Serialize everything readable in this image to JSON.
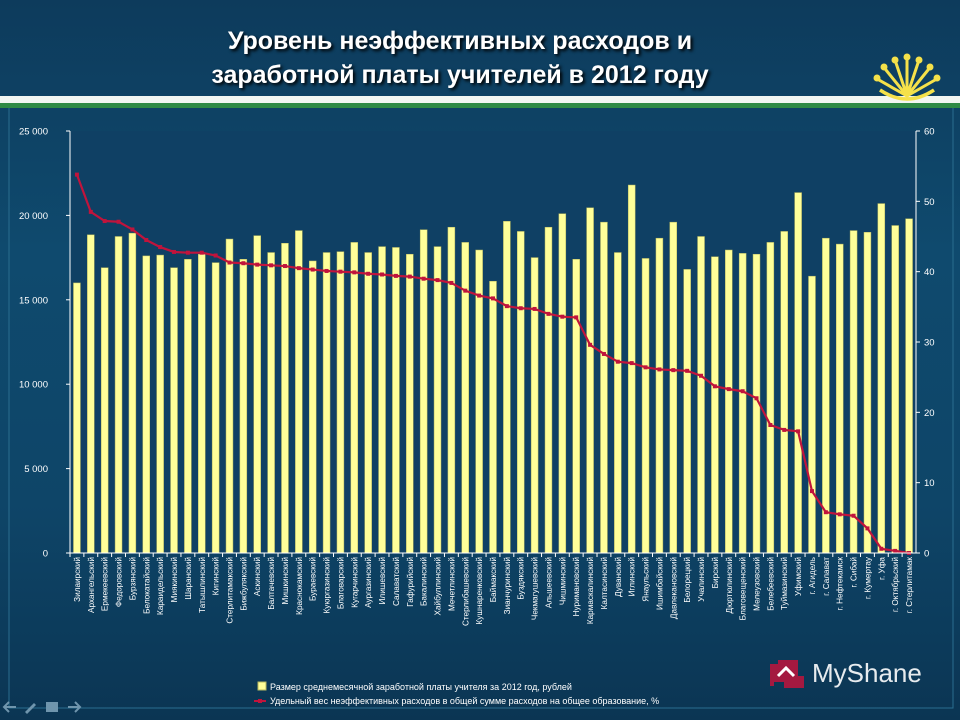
{
  "slide": {
    "title_line_1": "Уровень неэффективных расходов и",
    "title_line_2": "заработной платы учителей в 2012 году"
  },
  "watermark": {
    "text": "MyShane"
  },
  "colors": {
    "bar": "#ffff99",
    "bar_edge": "#b9b960",
    "line": "#c0143c",
    "plot_bg": "#0f4064",
    "axis": "#ffffff",
    "emblem": "#f5e14a"
  },
  "chart_data": {
    "type": "bar",
    "categories": [
      "Зилаирский",
      "Архангельский",
      "Ермекеевский",
      "Федоровский",
      "Бурзянский",
      "Белокатайский",
      "Караидельский",
      "Миякинский",
      "Шаранский",
      "Татышлинский",
      "Кигинский",
      "Стерлитамакский",
      "Бижбулякский",
      "Аскинский",
      "Балтачевский",
      "Мишкинский",
      "Краснокамский",
      "Бураевский",
      "Куюргазинский",
      "Благоварский",
      "Кугарчинский",
      "Аургазинский",
      "Илишевский",
      "Салаватский",
      "Гафурийский",
      "Бакалинский",
      "Хайбуллинский",
      "Мечетлинский",
      "Стерлибашевский",
      "Кушнаренковский",
      "Баймакский",
      "Зианчуринский",
      "Буздякский",
      "Чекмагушевский",
      "Альшеевский",
      "Чишминский",
      "Нуримановский",
      "Кармаскалинский",
      "Калтасинский",
      "Дуванский",
      "Иглинский",
      "Янаульский",
      "Ишимбайский",
      "Давлекановский",
      "Белорецкий",
      "Учалинский",
      "Бирский",
      "Дюртюлинский",
      "Благовещенский",
      "Мелеузовский",
      "Белебеевский",
      "Туймазинский",
      "Уфимский",
      "г. Агидель",
      "г. Салават",
      "г. Нефтекамск",
      "г. Сибай",
      "г. Кумертау",
      "г. Уфа",
      "г. Октябрьский",
      "г. Стерлитамак"
    ],
    "series": [
      {
        "name": "Размер среднемесячной заработной платы учителя  за 2012 год, рублей",
        "kind": "bar",
        "axis": "left",
        "values": [
          16000,
          18850,
          16900,
          18750,
          18950,
          17600,
          17650,
          16900,
          17400,
          17700,
          17200,
          18600,
          17400,
          18800,
          17800,
          18350,
          19100,
          17300,
          17800,
          17850,
          18400,
          17800,
          18150,
          18100,
          17700,
          19150,
          18150,
          19300,
          18400,
          17950,
          16100,
          19650,
          19050,
          17500,
          19300,
          20100,
          17400,
          20450,
          19600,
          17800,
          21800,
          17450,
          18650,
          19600,
          16800,
          18750,
          17550,
          17950,
          17750,
          17700,
          18400,
          19050,
          21350,
          16400,
          18650,
          18300,
          19100,
          19000,
          20700,
          19400,
          19800
        ]
      },
      {
        "name": "Удельный вес неэффективных расходов в общей сумме расходов на общее образование, %",
        "kind": "line",
        "axis": "right",
        "values": [
          53.8,
          48.5,
          47.2,
          47.1,
          46.0,
          44.5,
          43.5,
          42.8,
          42.7,
          42.7,
          42.3,
          41.3,
          41.2,
          41.0,
          40.9,
          40.8,
          40.5,
          40.3,
          40.1,
          40.0,
          39.9,
          39.7,
          39.6,
          39.4,
          39.3,
          39.0,
          38.8,
          38.4,
          37.3,
          36.6,
          36.2,
          35.1,
          34.8,
          34.7,
          34.0,
          33.6,
          33.5,
          29.6,
          28.3,
          27.2,
          27.0,
          26.4,
          26.1,
          26.0,
          25.9,
          25.2,
          23.7,
          23.3,
          23.0,
          22.0,
          18.2,
          17.5,
          17.3,
          8.8,
          5.8,
          5.5,
          5.3,
          3.5,
          0.6,
          0.3,
          0.0
        ]
      }
    ],
    "y_left": {
      "range": [
        0,
        25000
      ],
      "ticks": [
        "0",
        "5 000",
        "10 000",
        "15 000",
        "20 000",
        "25 000"
      ]
    },
    "y_right": {
      "range": [
        0,
        60
      ],
      "ticks": [
        "0",
        "10",
        "20",
        "30",
        "40",
        "50",
        "60"
      ]
    },
    "legend": {
      "placement": "bottom"
    },
    "grid": false
  }
}
